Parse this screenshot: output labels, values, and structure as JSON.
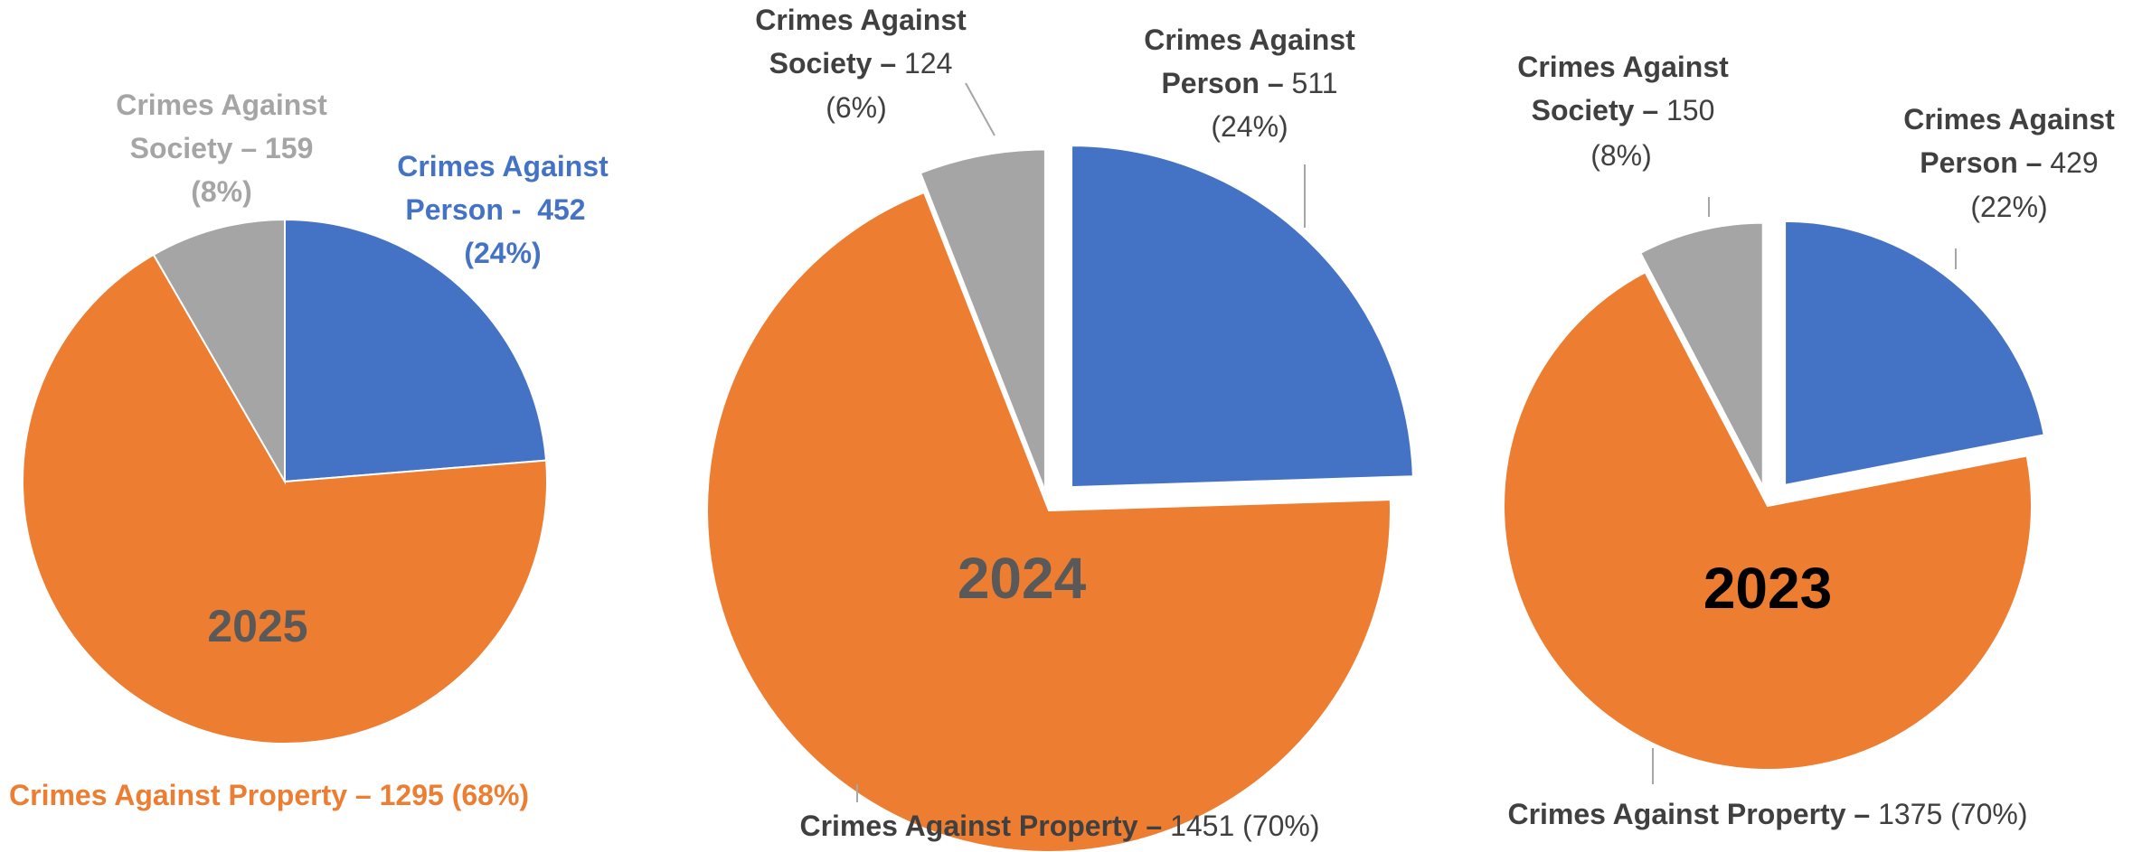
{
  "chart_data": [
    {
      "type": "pie",
      "year_label": "2025",
      "slices": [
        {
          "category": "Crimes Against Person",
          "value": 452,
          "percent": "24%",
          "color": "#4472c4",
          "label_parts": [
            "Crimes Against",
            "Person -  452",
            "(24%)"
          ]
        },
        {
          "category": "Crimes Against Property",
          "value": 1295,
          "percent": "68%",
          "color": "#ed7d31",
          "label_parts": [
            "Crimes Against Property – 1295 (68%)"
          ]
        },
        {
          "category": "Crimes Against Society",
          "value": 159,
          "percent": "8%",
          "color": "#a5a5a5",
          "label_parts": [
            "Crimes Against",
            "Society – 159",
            "(8%)"
          ]
        }
      ]
    },
    {
      "type": "pie",
      "year_label": "2024",
      "slices": [
        {
          "category": "Crimes Against Person",
          "value": 511,
          "percent": "24%",
          "color": "#4472c4",
          "label_parts": [
            "Crimes Against",
            "Person – ",
            "511",
            "(24%)"
          ]
        },
        {
          "category": "Crimes Against Property",
          "value": 1451,
          "percent": "70%",
          "color": "#ed7d31",
          "label_parts": [
            "Crimes Against Property – ",
            "1451 (70%)"
          ]
        },
        {
          "category": "Crimes Against Society",
          "value": 124,
          "percent": "6%",
          "color": "#a5a5a5",
          "label_parts": [
            "Crimes Against",
            "Society – ",
            "124",
            "(6%)"
          ]
        }
      ]
    },
    {
      "type": "pie",
      "year_label": "2023",
      "slices": [
        {
          "category": "Crimes Against Person",
          "value": 429,
          "percent": "22%",
          "color": "#4472c4",
          "label_parts": [
            "Crimes Against",
            "Person – ",
            "429",
            "(22%)"
          ]
        },
        {
          "category": "Crimes Against Property",
          "value": 1375,
          "percent": "70%",
          "color": "#ed7d31",
          "label_parts": [
            "Crimes Against Property – ",
            "1375 (70%)"
          ]
        },
        {
          "category": "Crimes Against Society",
          "value": 150,
          "percent": "8%",
          "color": "#a5a5a5",
          "label_parts": [
            "Crimes Against",
            "Society – ",
            "150",
            "(8%)"
          ]
        }
      ]
    }
  ]
}
